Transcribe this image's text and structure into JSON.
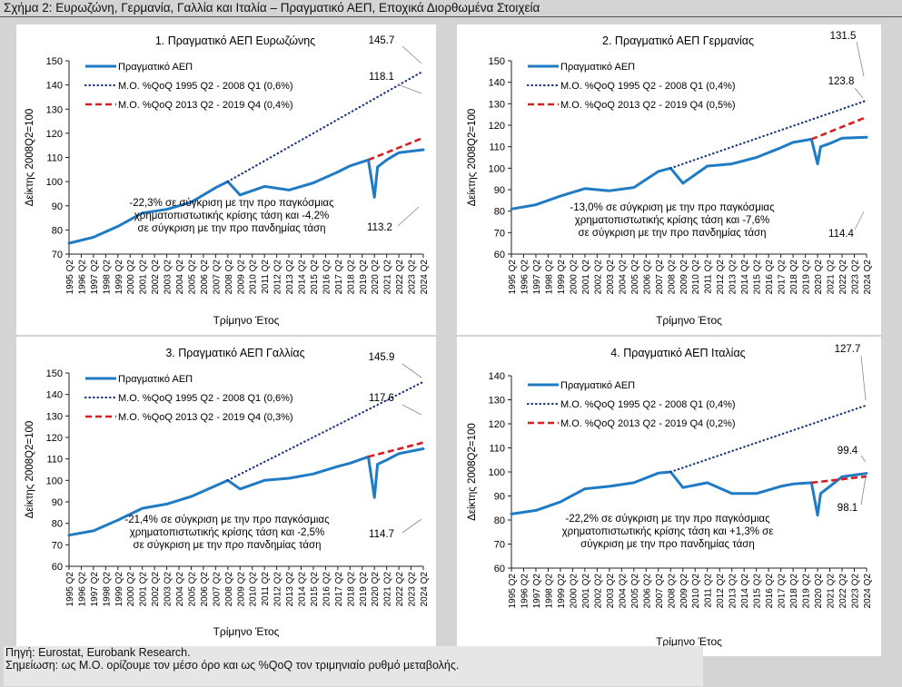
{
  "figure_title": "Σχήμα 2: Ευρωζώνη, Γερμανία, Γαλλία και Ιταλία – Πραγματικό ΑΕΠ, Εποχικά Διορθωμένα Στοιχεία",
  "source_note": "Πηγή: Eurostat, Eurobank Research.",
  "footnote": "Σημείωση: ως Μ.Ο. ορίζουμε τον μέσο όρο και ως %QoQ τον τριμηνιαίο ρυθμό μεταβολής.",
  "colors": {
    "actual": "#1f7bc4",
    "pre_crisis_trend": "#1c3a7a",
    "pre_pandemic_trend": "#d42020"
  },
  "chart_data": [
    {
      "type": "line",
      "title": "1. Πραγματικό ΑΕΠ Ευρωζώνης",
      "xlabel": "Τρίμηνο Έτος",
      "ylabel": "Δείκτης 2008Q2=100",
      "ylim": [
        70,
        150
      ],
      "yticks": [
        70,
        80,
        90,
        100,
        110,
        120,
        130,
        140,
        150
      ],
      "xticks": [
        "1995 Q2",
        "1996 Q2",
        "1997 Q2",
        "1998 Q2",
        "1999 Q2",
        "2000 Q2",
        "2001 Q2",
        "2002 Q2",
        "2003 Q2",
        "2004 Q2",
        "2005 Q2",
        "2006 Q2",
        "2007 Q2",
        "2008 Q2",
        "2009 Q2",
        "2010 Q2",
        "2011 Q2",
        "2012 Q2",
        "2013 Q2",
        "2014 Q2",
        "2015 Q2",
        "2016 Q2",
        "2017 Q2",
        "2018 Q2",
        "2019 Q2",
        "2020 Q2",
        "2021 Q2",
        "2022 Q2",
        "2023 Q2",
        "2024 Q2"
      ],
      "legend_position": "top-left",
      "series": [
        {
          "name": "Πραγματικό ΑΕΠ",
          "style": "solid",
          "color": "#1f7bc4",
          "points": [
            [
              "1995 Q2",
              74.5
            ],
            [
              "1997 Q2",
              77
            ],
            [
              "1999 Q2",
              81.5
            ],
            [
              "2001 Q2",
              87
            ],
            [
              "2003 Q2",
              88.5
            ],
            [
              "2005 Q2",
              91.5
            ],
            [
              "2007 Q2",
              97.5
            ],
            [
              "2008 Q2",
              100
            ],
            [
              "2009 Q2",
              94.5
            ],
            [
              "2011 Q2",
              98
            ],
            [
              "2013 Q2",
              96.5
            ],
            [
              "2015 Q2",
              99.5
            ],
            [
              "2017 Q2",
              104
            ],
            [
              "2018 Q2",
              106.5
            ],
            [
              "2019 Q4",
              109
            ],
            [
              "2020 Q2",
              93.5
            ],
            [
              "2020 Q3",
              106
            ],
            [
              "2021 Q2",
              109
            ],
            [
              "2022 Q2",
              112
            ],
            [
              "2024 Q2",
              113.2
            ]
          ]
        },
        {
          "name": "Μ.Ο. %QoQ 1995 Q2 - 2008 Q1 (0,6%)",
          "style": "dotted",
          "color": "#1c3a7a",
          "points": [
            [
              "2008 Q2",
              100
            ],
            [
              "2024 Q2",
              145.7
            ]
          ]
        },
        {
          "name": "Μ.Ο. %QoQ 2013 Q2 - 2019 Q4 (0,4%)",
          "style": "dashed",
          "color": "#d42020",
          "points": [
            [
              "2019 Q4",
              109
            ],
            [
              "2024 Q2",
              118.1
            ]
          ]
        }
      ],
      "value_labels": [
        "145.7",
        "118.1",
        "113.2"
      ],
      "annotation": [
        "-22,3% σε σύγκριση με την προ παγκόσμιας",
        "χρηματοπιστωτικής κρίσης τάση και -4,2%",
        "σε σύγκριση με την προ πανδημίας τάση"
      ]
    },
    {
      "type": "line",
      "title": "2. Πραγματικό ΑΕΠ Γερμανίας",
      "xlabel": "Τρίμηνο Έτος",
      "ylabel": "Δείκτης 2008Q2=100",
      "ylim": [
        60,
        150
      ],
      "yticks": [
        60,
        70,
        80,
        90,
        100,
        110,
        120,
        130,
        140,
        150
      ],
      "xticks": [
        "1995 Q2",
        "1996 Q2",
        "1997 Q2",
        "1998 Q2",
        "1999 Q2",
        "2000 Q2",
        "2001 Q2",
        "2002 Q2",
        "2003 Q2",
        "2004 Q2",
        "2005 Q2",
        "2006 Q2",
        "2007 Q2",
        "2008 Q2",
        "2009 Q2",
        "2010 Q2",
        "2011 Q2",
        "2012 Q2",
        "2013 Q2",
        "2014 Q2",
        "2015 Q2",
        "2016 Q2",
        "2017 Q2",
        "2018 Q2",
        "2019 Q2",
        "2020 Q2",
        "2021 Q2",
        "2022 Q2",
        "2023 Q2",
        "2024 Q2"
      ],
      "legend_position": "top-left",
      "series": [
        {
          "name": "Πραγματικό ΑΕΠ",
          "style": "solid",
          "color": "#1f7bc4",
          "points": [
            [
              "1995 Q2",
              81
            ],
            [
              "1997 Q2",
              83
            ],
            [
              "1999 Q2",
              87
            ],
            [
              "2001 Q2",
              90.5
            ],
            [
              "2003 Q2",
              89.5
            ],
            [
              "2005 Q2",
              91
            ],
            [
              "2007 Q2",
              98.5
            ],
            [
              "2008 Q2",
              100
            ],
            [
              "2009 Q2",
              93
            ],
            [
              "2011 Q2",
              101
            ],
            [
              "2013 Q2",
              102
            ],
            [
              "2015 Q2",
              105
            ],
            [
              "2017 Q2",
              109.5
            ],
            [
              "2018 Q2",
              112
            ],
            [
              "2019 Q4",
              113.5
            ],
            [
              "2020 Q2",
              102
            ],
            [
              "2020 Q3",
              110
            ],
            [
              "2021 Q2",
              111.5
            ],
            [
              "2022 Q2",
              114
            ],
            [
              "2024 Q2",
              114.4
            ]
          ]
        },
        {
          "name": "Μ.Ο. %QoQ 1995 Q2 - 2008 Q1 (0,4%)",
          "style": "dotted",
          "color": "#1c3a7a",
          "points": [
            [
              "2008 Q2",
              100
            ],
            [
              "2024 Q2",
              131.5
            ]
          ]
        },
        {
          "name": "Μ.Ο. %QoQ 2013 Q2 - 2019 Q4 (0,5%)",
          "style": "dashed",
          "color": "#d42020",
          "points": [
            [
              "2019 Q4",
              113.5
            ],
            [
              "2024 Q2",
              123.8
            ]
          ]
        }
      ],
      "value_labels": [
        "131.5",
        "123.8",
        "114.4"
      ],
      "annotation": [
        "-13,0% σε σύγκριση με την προ παγκόσμιας",
        "χρηματοπιστωτικής κρίσης τάση και -7,6%",
        "σε σύγκριση με την προ πανδημίας τάση"
      ]
    },
    {
      "type": "line",
      "title": "3. Πραγματικό ΑΕΠ Γαλλίας",
      "xlabel": "Τρίμηνο Έτος",
      "ylabel": "Δείκτης 2008Q2=100",
      "ylim": [
        60,
        150
      ],
      "yticks": [
        60,
        70,
        80,
        90,
        100,
        110,
        120,
        130,
        140,
        150
      ],
      "xticks": [
        "1995 Q2",
        "1996 Q2",
        "1997 Q2",
        "1998 Q2",
        "1999 Q2",
        "2000 Q2",
        "2001 Q2",
        "2002 Q2",
        "2003 Q2",
        "2004 Q2",
        "2005 Q2",
        "2006 Q2",
        "2007 Q2",
        "2008 Q2",
        "2009 Q2",
        "2010 Q2",
        "2011 Q2",
        "2012 Q2",
        "2013 Q2",
        "2014 Q2",
        "2015 Q2",
        "2016 Q2",
        "2017 Q2",
        "2018 Q2",
        "2019 Q2",
        "2020 Q2",
        "2021 Q2",
        "2022 Q2",
        "2023 Q2",
        "2024 Q2"
      ],
      "legend_position": "top-left",
      "series": [
        {
          "name": "Πραγματικό ΑΕΠ",
          "style": "solid",
          "color": "#1f7bc4",
          "points": [
            [
              "1995 Q2",
              74.5
            ],
            [
              "1997 Q2",
              76.5
            ],
            [
              "1999 Q2",
              81.5
            ],
            [
              "2001 Q2",
              87
            ],
            [
              "2003 Q2",
              89
            ],
            [
              "2005 Q2",
              92.5
            ],
            [
              "2007 Q2",
              97.5
            ],
            [
              "2008 Q2",
              100
            ],
            [
              "2009 Q2",
              96
            ],
            [
              "2011 Q2",
              100
            ],
            [
              "2013 Q2",
              101
            ],
            [
              "2015 Q2",
              103
            ],
            [
              "2017 Q2",
              106.5
            ],
            [
              "2018 Q2",
              108
            ],
            [
              "2019 Q4",
              111
            ],
            [
              "2020 Q2",
              92
            ],
            [
              "2020 Q3",
              107.5
            ],
            [
              "2021 Q2",
              109.5
            ],
            [
              "2022 Q2",
              112.5
            ],
            [
              "2024 Q2",
              114.7
            ]
          ]
        },
        {
          "name": "Μ.Ο. %QoQ 1995 Q2 - 2008 Q1 (0,6%)",
          "style": "dotted",
          "color": "#1c3a7a",
          "points": [
            [
              "2008 Q2",
              100
            ],
            [
              "2024 Q2",
              145.9
            ]
          ]
        },
        {
          "name": "Μ.Ο. %QoQ 2013 Q2 - 2019 Q4 (0,3%)",
          "style": "dashed",
          "color": "#d42020",
          "points": [
            [
              "2019 Q4",
              111
            ],
            [
              "2024 Q2",
              117.6
            ]
          ]
        }
      ],
      "value_labels": [
        "145.9",
        "117.6",
        "114.7"
      ],
      "annotation": [
        "-21,4% σε σύγκριση με την προ παγκόσμιας",
        "χρηματοπιστωτικής κρίσης τάση και -2,5%",
        "σε σύγκριση με την προ πανδημίας τάση"
      ]
    },
    {
      "type": "line",
      "title": "4. Πραγματικό ΑΕΠ Ιταλίας",
      "xlabel": "Τρίμηνο Έτος",
      "ylabel": "Δείκτης 2008Q2=100",
      "ylim": [
        60,
        140
      ],
      "yticks": [
        60,
        70,
        80,
        90,
        100,
        110,
        120,
        130,
        140
      ],
      "xticks": [
        "1995 Q2",
        "1996 Q2",
        "1997 Q2",
        "1998 Q2",
        "1999 Q2",
        "2000 Q2",
        "2001 Q2",
        "2002 Q2",
        "2003 Q2",
        "2004 Q2",
        "2005 Q2",
        "2006 Q2",
        "2007 Q2",
        "2008 Q2",
        "2009 Q2",
        "2010 Q2",
        "2011 Q2",
        "2012 Q2",
        "2013 Q2",
        "2014 Q2",
        "2015 Q2",
        "2016 Q2",
        "2017 Q2",
        "2018 Q2",
        "2019 Q2",
        "2020 Q2",
        "2021 Q2",
        "2022 Q2",
        "2023 Q2",
        "2024 Q2"
      ],
      "legend_position": "top-left",
      "series": [
        {
          "name": "Πραγματικό ΑΕΠ",
          "style": "solid",
          "color": "#1f7bc4",
          "points": [
            [
              "1995 Q2",
              82.5
            ],
            [
              "1997 Q2",
              84
            ],
            [
              "1999 Q2",
              87.5
            ],
            [
              "2001 Q2",
              93
            ],
            [
              "2003 Q2",
              94
            ],
            [
              "2005 Q2",
              95.5
            ],
            [
              "2007 Q2",
              99.5
            ],
            [
              "2008 Q2",
              100
            ],
            [
              "2009 Q2",
              93.5
            ],
            [
              "2011 Q2",
              95.5
            ],
            [
              "2013 Q2",
              91
            ],
            [
              "2015 Q2",
              91
            ],
            [
              "2017 Q2",
              94
            ],
            [
              "2018 Q2",
              95
            ],
            [
              "2019 Q4",
              95.5
            ],
            [
              "2020 Q2",
              82
            ],
            [
              "2020 Q3",
              91
            ],
            [
              "2021 Q2",
              94
            ],
            [
              "2022 Q2",
              98
            ],
            [
              "2024 Q2",
              99.4
            ]
          ]
        },
        {
          "name": "Μ.Ο. %QoQ 1995 Q2 - 2008 Q1 (0,4%)",
          "style": "dotted",
          "color": "#1c3a7a",
          "points": [
            [
              "2008 Q2",
              100
            ],
            [
              "2024 Q2",
              127.7
            ]
          ]
        },
        {
          "name": "Μ.Ο. %QoQ 2013 Q2 - 2019 Q4 (0,2%)",
          "style": "dashed",
          "color": "#d42020",
          "points": [
            [
              "2019 Q4",
              95.5
            ],
            [
              "2024 Q2",
              98.1
            ]
          ]
        }
      ],
      "value_labels": [
        "127.7",
        "99.4",
        "98.1"
      ],
      "annotation": [
        "-22,2% σε σύγκριση με την προ παγκόσμιας",
        "χρηματοπιστωτικής κρίσης τάση και +1,3% σε",
        "σύγκριση με την προ πανδημίας τάση"
      ]
    }
  ]
}
